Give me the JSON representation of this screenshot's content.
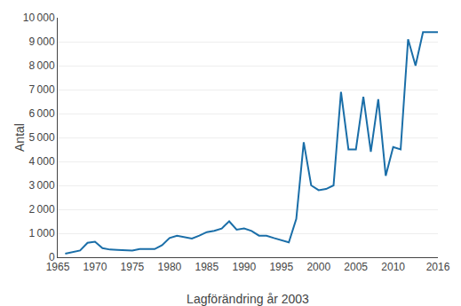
{
  "chart_data": {
    "type": "line",
    "x_label": "Lagförändring år 2003",
    "y_label": "Antal",
    "x": [
      1966,
      1967,
      1968,
      1969,
      1970,
      1971,
      1972,
      1973,
      1974,
      1975,
      1976,
      1977,
      1978,
      1979,
      1980,
      1981,
      1982,
      1983,
      1984,
      1985,
      1986,
      1987,
      1988,
      1989,
      1990,
      1991,
      1992,
      1993,
      1994,
      1995,
      1996,
      1997,
      1998,
      1999,
      2000,
      2001,
      2002,
      2003,
      2004,
      2005,
      2006,
      2007,
      2008,
      2009,
      2010,
      2011,
      2012,
      2013,
      2014,
      2016
    ],
    "values": [
      150,
      220,
      280,
      600,
      650,
      380,
      320,
      310,
      300,
      280,
      340,
      350,
      340,
      500,
      800,
      900,
      850,
      780,
      900,
      1050,
      1100,
      1200,
      1500,
      1150,
      1200,
      1100,
      900,
      900,
      800,
      700,
      620,
      1600,
      4800,
      3000,
      2800,
      2850,
      3000,
      6900,
      4500,
      4500,
      6700,
      4400,
      6600,
      3400,
      4600,
      4500,
      9100,
      8000,
      9400,
      9400
    ],
    "color": "#1a6ea8",
    "xlim": [
      1965,
      2016
    ],
    "ylim": [
      0,
      10000
    ],
    "xticks": [
      1965,
      1970,
      1975,
      1980,
      1985,
      1990,
      1995,
      2000,
      2005,
      2010,
      2016
    ],
    "yticks": [
      0,
      {
        "value": 1000,
        "label": "1 000"
      },
      {
        "value": 2000,
        "label": "2 000"
      },
      {
        "value": 3000,
        "label": "3 000"
      },
      {
        "value": 4000,
        "label": "4 000"
      },
      {
        "value": 5000,
        "label": "5 000"
      },
      {
        "value": 6000,
        "label": "6 000"
      },
      {
        "value": 7000,
        "label": "7 000"
      },
      {
        "value": 8000,
        "label": "8 000"
      },
      {
        "value": 9000,
        "label": "9 000"
      },
      {
        "value": 10000,
        "label": "10 000"
      }
    ],
    "grid": "y"
  }
}
